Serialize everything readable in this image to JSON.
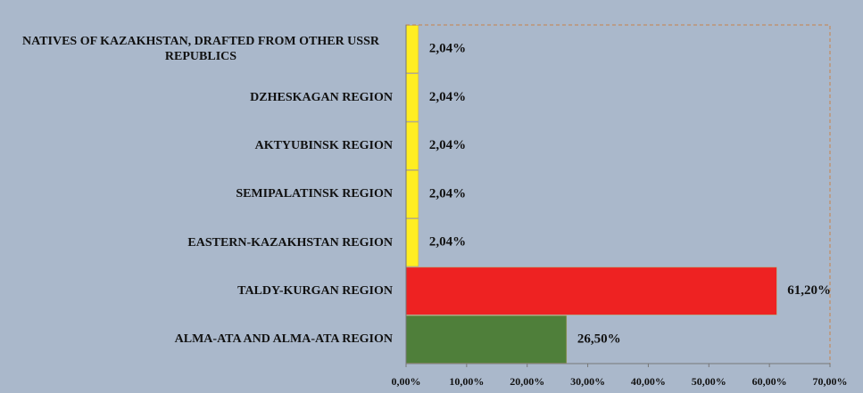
{
  "chart_data": {
    "type": "bar",
    "orientation": "horizontal",
    "categories": [
      "NATIVES OF KAZAKHSTAN, DRAFTED FROM OTHER USSR REPUBLICS",
      "DZHESKAGAN REGION",
      "AKTYUBINSK REGION",
      "SEMIPALATINSK REGION",
      "EASTERN-KAZAKHSTAN REGION",
      "TALDY-KURGAN REGION",
      "ALMA-ATA AND ALMA-ATA REGION"
    ],
    "values": [
      2.04,
      2.04,
      2.04,
      2.04,
      2.04,
      61.2,
      26.5
    ],
    "value_labels": [
      "2,04%",
      "2,04%",
      "2,04%",
      "2,04%",
      "2,04%",
      "61,20%",
      "26,50%"
    ],
    "colors": [
      "#ffee22",
      "#ffee22",
      "#ffee22",
      "#ffee22",
      "#ffee22",
      "#ee2222",
      "#4f7f3a"
    ],
    "xlim": [
      0,
      70
    ],
    "xticks": [
      {
        "value": 0,
        "label": "0,00%"
      },
      {
        "value": 10,
        "label": "10,00%"
      },
      {
        "value": 20,
        "label": "20,00%"
      },
      {
        "value": 30,
        "label": "30,00%"
      },
      {
        "value": 40,
        "label": "40,00%"
      },
      {
        "value": 50,
        "label": "50,00%"
      },
      {
        "value": 60,
        "label": "60,00%"
      },
      {
        "value": 70,
        "label": "70,00%"
      }
    ],
    "grid": false
  }
}
